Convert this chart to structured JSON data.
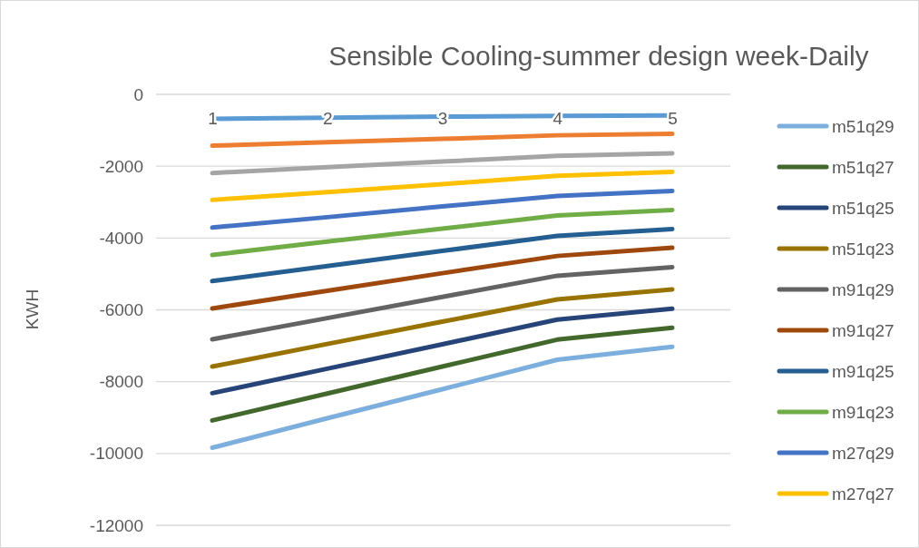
{
  "chart_data": {
    "type": "line",
    "title": "Sensible Cooling-summer design week-Daily",
    "ylabel": "KWH",
    "categories": [
      "1",
      "2",
      "3",
      "4",
      "5"
    ],
    "ylim": [
      -12000,
      0
    ],
    "yticks": [
      -12000,
      -10000,
      -8000,
      -6000,
      -4000,
      -2000,
      0
    ],
    "grid": "y",
    "legend": "right",
    "marker": "none",
    "line_style": "solid",
    "series": [
      {
        "name": "m51q29",
        "color": "#7cafdd",
        "values": [
          -9840,
          -9020,
          -8210,
          -7390,
          -7030
        ]
      },
      {
        "name": "m51q27",
        "color": "#43682b",
        "values": [
          -9080,
          -8330,
          -7580,
          -6830,
          -6500
        ]
      },
      {
        "name": "m51q25",
        "color": "#264478",
        "values": [
          -8320,
          -7640,
          -6960,
          -6270,
          -5970
        ]
      },
      {
        "name": "m51q23",
        "color": "#997300",
        "values": [
          -7580,
          -6950,
          -6330,
          -5710,
          -5430
        ]
      },
      {
        "name": "m91q29",
        "color": "#636363",
        "values": [
          -6820,
          -6230,
          -5640,
          -5050,
          -4810
        ]
      },
      {
        "name": "m91q27",
        "color": "#9e480e",
        "values": [
          -5960,
          -5470,
          -4980,
          -4500,
          -4270
        ]
      },
      {
        "name": "m91q25",
        "color": "#255e91",
        "values": [
          -5200,
          -4780,
          -4360,
          -3940,
          -3750
        ]
      },
      {
        "name": "m91q23",
        "color": "#70ad47",
        "values": [
          -4470,
          -4100,
          -3740,
          -3370,
          -3220
        ]
      },
      {
        "name": "m27q29",
        "color": "#4472c4",
        "values": [
          -3710,
          -3420,
          -3120,
          -2830,
          -2690
        ]
      },
      {
        "name": "m27q27",
        "color": "#ffc000",
        "values": [
          -2940,
          -2720,
          -2500,
          -2270,
          -2160
        ]
      },
      {
        "color": "#a5a5a5",
        "values": [
          -2190,
          -2030,
          -1870,
          -1710,
          -1640
        ]
      },
      {
        "color": "#ed7d31",
        "values": [
          -1430,
          -1330,
          -1240,
          -1140,
          -1100
        ]
      },
      {
        "color": "#5b9bd5",
        "values": [
          -680,
          -650,
          -620,
          -600,
          -590
        ]
      }
    ]
  }
}
